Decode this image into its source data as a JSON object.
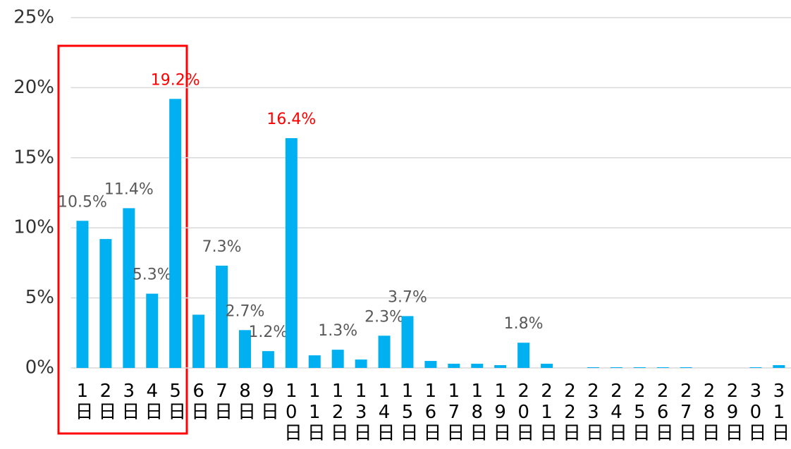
{
  "chart_data": {
    "type": "bar",
    "categories": [
      "1日",
      "2日",
      "3日",
      "4日",
      "5日",
      "6日",
      "7日",
      "8日",
      "9日",
      "10日",
      "11日",
      "12日",
      "13日",
      "14日",
      "15日",
      "16日",
      "17日",
      "18日",
      "19日",
      "20日",
      "21日",
      "22日",
      "23日",
      "24日",
      "25日",
      "26日",
      "27日",
      "28日",
      "29日",
      "30日",
      "31日"
    ],
    "values": [
      10.5,
      9.2,
      11.4,
      5.3,
      19.2,
      3.8,
      7.3,
      2.7,
      1.2,
      16.4,
      0.9,
      1.3,
      0.6,
      2.3,
      3.7,
      0.5,
      0.3,
      0.3,
      0.2,
      1.8,
      0.3,
      0,
      0.05,
      0.05,
      0.05,
      0.05,
      0.05,
      0,
      0,
      0.05,
      0.2
    ],
    "value_labels": [
      "10.5%",
      null,
      "11.4%",
      "5.3%",
      "19.2%",
      null,
      "7.3%",
      "2.7%",
      "1.2%",
      "16.4%",
      null,
      "1.3%",
      null,
      "2.3%",
      "3.7%",
      null,
      null,
      null,
      null,
      "1.8%",
      null,
      null,
      null,
      null,
      null,
      null,
      null,
      null,
      null,
      null,
      null
    ],
    "value_label_colors": [
      "#595959",
      null,
      "#595959",
      "#595959",
      "#ff0000",
      null,
      "#595959",
      "#595959",
      "#595959",
      "#ff0000",
      null,
      "#595959",
      null,
      "#595959",
      "#595959",
      null,
      null,
      null,
      null,
      "#595959",
      null,
      null,
      null,
      null,
      null,
      null,
      null,
      null,
      null,
      null,
      null
    ],
    "color": "#00b0f0",
    "ylim": [
      0,
      25
    ],
    "yticks": [
      {
        "value": 0,
        "label": "0%"
      },
      {
        "value": 5,
        "label": "5%"
      },
      {
        "value": 10,
        "label": "10%"
      },
      {
        "value": 15,
        "label": "15%"
      },
      {
        "value": 20,
        "label": "20%"
      },
      {
        "value": 25,
        "label": "25%"
      }
    ],
    "grid": true
  }
}
